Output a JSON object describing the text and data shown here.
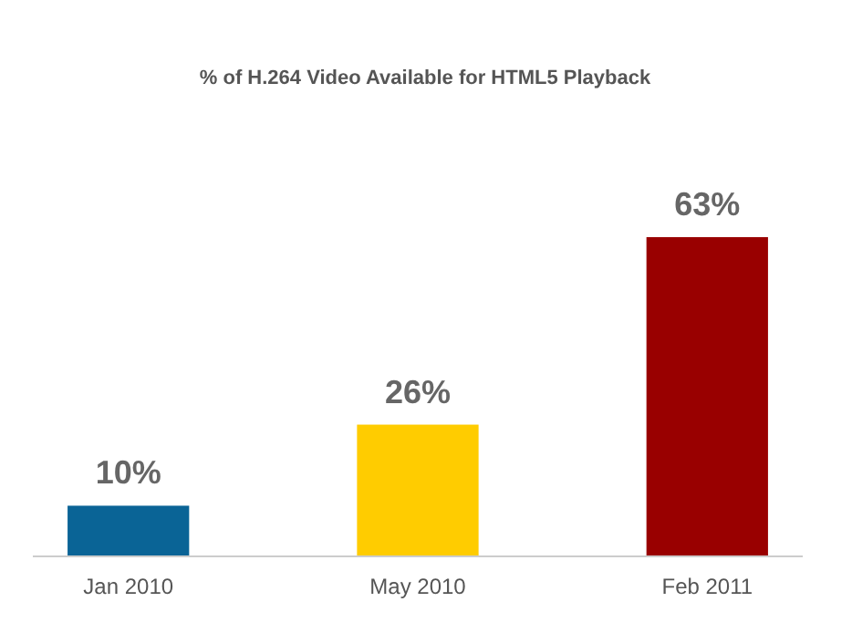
{
  "chart_data": {
    "type": "bar",
    "title": "% of H.264 Video Available for HTML5 Playback",
    "categories": [
      "Jan 2010",
      "May 2010",
      "Feb 2011"
    ],
    "values": [
      10,
      26,
      63
    ],
    "colors": [
      "#0a6496",
      "#ffcc00",
      "#990000"
    ],
    "value_labels": [
      "10%",
      "26%",
      "63%"
    ]
  }
}
